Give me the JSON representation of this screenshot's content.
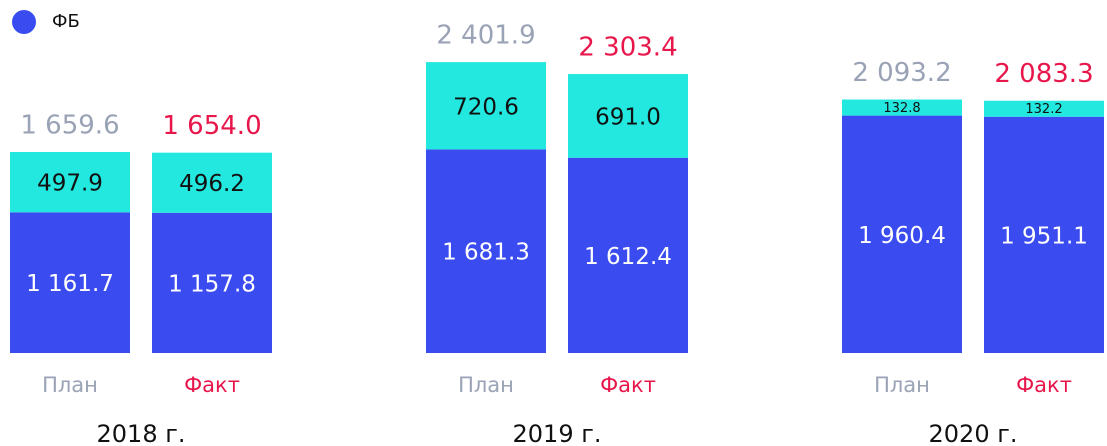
{
  "chart_data": {
    "type": "stacked_bar",
    "groups": [
      "2018 г.",
      "2019 г.",
      "2020 г."
    ],
    "categories": [
      "План",
      "Факт",
      "План",
      "Факт",
      "План",
      "Факт"
    ],
    "category_colors": [
      "#9aa2b6",
      "#e8174b",
      "#9aa2b6",
      "#e8174b",
      "#9aa2b6",
      "#e8174b"
    ],
    "series": [
      {
        "name": "ФБ",
        "color": "#3a4cf0",
        "label_color": "#ffffff",
        "values": [
          1161.7,
          1157.8,
          1681.3,
          1612.4,
          1960.4,
          1951.1
        ],
        "value_labels": [
          "1 161.7",
          "1 157.8",
          "1 681.3",
          "1 612.4",
          "1 960.4",
          "1 951.1"
        ]
      },
      {
        "color": "#22e8e0",
        "label_color": "#111111",
        "values": [
          497.9,
          496.2,
          720.6,
          691.0,
          132.8,
          132.2
        ],
        "value_labels": [
          "497.9",
          "496.2",
          "720.6",
          "691.0",
          "132.8",
          "132.2"
        ]
      }
    ],
    "totals": [
      1659.6,
      1654.0,
      2401.9,
      2303.4,
      2093.2,
      2083.3
    ],
    "total_labels": [
      "1 659.6",
      "1 654.0",
      "2 401.9",
      "2 303.4",
      "2 093.2",
      "2 083.3"
    ],
    "legend": "top-left"
  }
}
